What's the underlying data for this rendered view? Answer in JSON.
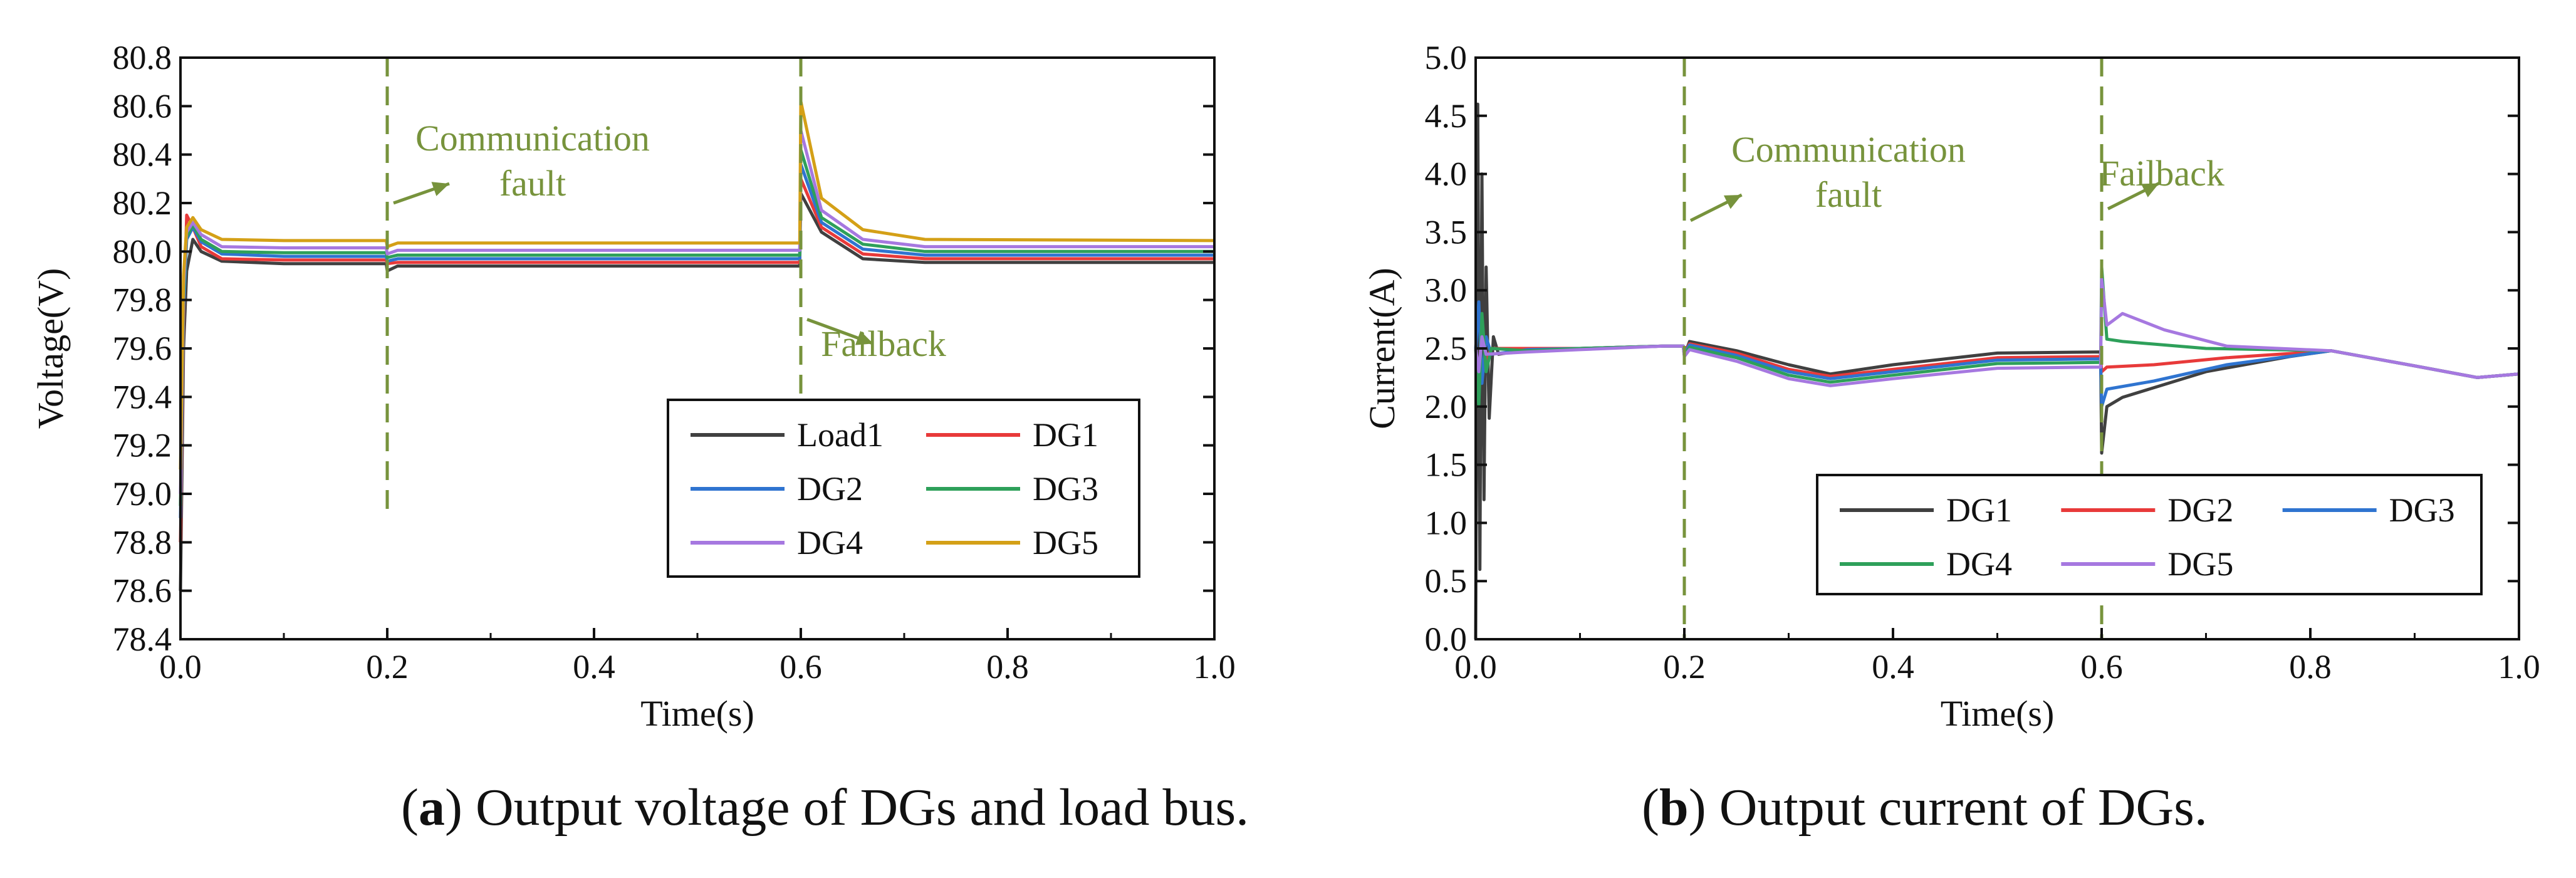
{
  "annotation_color": "#77933c",
  "chart_data": [
    {
      "id": "a",
      "type": "line",
      "caption_label": "a",
      "caption_text": "Output voltage of DGs and load bus.",
      "xlabel": "Time(s)",
      "ylabel": "Voltage(V)",
      "xlim": [
        0,
        1.0
      ],
      "ylim": [
        78.4,
        80.8
      ],
      "xticks": [
        "0.0",
        "0.2",
        "0.4",
        "0.6",
        "0.8",
        "1.0"
      ],
      "yticks": [
        "78.4",
        "78.6",
        "78.8",
        "79.0",
        "79.2",
        "79.4",
        "79.6",
        "79.8",
        "80.0",
        "80.2",
        "80.4",
        "80.6",
        "80.8"
      ],
      "legend_position": "bottom-right",
      "legend_columns": 2,
      "series": [
        {
          "name": "Load1",
          "color": "#404040",
          "points": [
            [
              0,
              78.6
            ],
            [
              0.003,
              79.6
            ],
            [
              0.006,
              79.92
            ],
            [
              0.012,
              80.05
            ],
            [
              0.02,
              80.0
            ],
            [
              0.04,
              79.96
            ],
            [
              0.1,
              79.95
            ],
            [
              0.199,
              79.95
            ],
            [
              0.2,
              79.92
            ],
            [
              0.21,
              79.94
            ],
            [
              0.4,
              79.94
            ],
            [
              0.599,
              79.94
            ],
            [
              0.6,
              80.24
            ],
            [
              0.62,
              80.08
            ],
            [
              0.66,
              79.97
            ],
            [
              0.72,
              79.955
            ],
            [
              1.0,
              79.955
            ]
          ]
        },
        {
          "name": "DG1",
          "color": "#e83a3a",
          "points": [
            [
              0,
              78.8
            ],
            [
              0.003,
              79.7
            ],
            [
              0.006,
              80.15
            ],
            [
              0.012,
              80.1
            ],
            [
              0.02,
              80.02
            ],
            [
              0.04,
              79.97
            ],
            [
              0.1,
              79.965
            ],
            [
              0.199,
              79.965
            ],
            [
              0.2,
              79.95
            ],
            [
              0.21,
              79.955
            ],
            [
              0.4,
              79.955
            ],
            [
              0.599,
              79.955
            ],
            [
              0.6,
              80.3
            ],
            [
              0.62,
              80.1
            ],
            [
              0.66,
              79.99
            ],
            [
              0.72,
              79.97
            ],
            [
              1.0,
              79.97
            ]
          ]
        },
        {
          "name": "DG2",
          "color": "#2f74d0",
          "points": [
            [
              0,
              78.9
            ],
            [
              0.003,
              79.75
            ],
            [
              0.006,
              80.05
            ],
            [
              0.012,
              80.1
            ],
            [
              0.02,
              80.04
            ],
            [
              0.04,
              79.99
            ],
            [
              0.1,
              79.98
            ],
            [
              0.199,
              79.98
            ],
            [
              0.2,
              79.96
            ],
            [
              0.21,
              79.97
            ],
            [
              0.4,
              79.97
            ],
            [
              0.599,
              79.97
            ],
            [
              0.6,
              80.36
            ],
            [
              0.62,
              80.12
            ],
            [
              0.66,
              80.01
            ],
            [
              0.72,
              79.985
            ],
            [
              1.0,
              79.985
            ]
          ]
        },
        {
          "name": "DG3",
          "color": "#2ea05a",
          "points": [
            [
              0,
              78.95
            ],
            [
              0.003,
              79.8
            ],
            [
              0.006,
              80.06
            ],
            [
              0.012,
              80.11
            ],
            [
              0.02,
              80.05
            ],
            [
              0.04,
              80.0
            ],
            [
              0.1,
              79.995
            ],
            [
              0.199,
              79.995
            ],
            [
              0.2,
              79.975
            ],
            [
              0.21,
              79.985
            ],
            [
              0.4,
              79.985
            ],
            [
              0.599,
              79.985
            ],
            [
              0.6,
              80.42
            ],
            [
              0.62,
              80.14
            ],
            [
              0.66,
              80.03
            ],
            [
              0.72,
              80.0
            ],
            [
              1.0,
              80.0
            ]
          ]
        },
        {
          "name": "DG4",
          "color": "#a678e0",
          "points": [
            [
              0,
              79.0
            ],
            [
              0.003,
              79.85
            ],
            [
              0.006,
              80.08
            ],
            [
              0.012,
              80.12
            ],
            [
              0.02,
              80.07
            ],
            [
              0.04,
              80.02
            ],
            [
              0.1,
              80.015
            ],
            [
              0.199,
              80.015
            ],
            [
              0.2,
              79.99
            ],
            [
              0.21,
              80.005
            ],
            [
              0.4,
              80.005
            ],
            [
              0.599,
              80.005
            ],
            [
              0.6,
              80.5
            ],
            [
              0.62,
              80.17
            ],
            [
              0.66,
              80.05
            ],
            [
              0.72,
              80.02
            ],
            [
              1.0,
              80.02
            ]
          ]
        },
        {
          "name": "DG5",
          "color": "#d4a017",
          "points": [
            [
              0,
              79.1
            ],
            [
              0.003,
              79.9
            ],
            [
              0.006,
              80.1
            ],
            [
              0.012,
              80.14
            ],
            [
              0.02,
              80.09
            ],
            [
              0.04,
              80.05
            ],
            [
              0.1,
              80.045
            ],
            [
              0.199,
              80.045
            ],
            [
              0.2,
              80.02
            ],
            [
              0.21,
              80.035
            ],
            [
              0.4,
              80.035
            ],
            [
              0.599,
              80.035
            ],
            [
              0.6,
              80.62
            ],
            [
              0.62,
              80.22
            ],
            [
              0.66,
              80.09
            ],
            [
              0.72,
              80.05
            ],
            [
              1.0,
              80.045
            ]
          ]
        }
      ],
      "event_lines": [
        0.2,
        0.6
      ],
      "annotations": [
        {
          "text_lines": [
            "Communication",
            "fault"
          ],
          "anchor_x": 0.2,
          "anchor_y": 80.2,
          "arrow_dx": 0.06,
          "arrow_dy": 0.08
        },
        {
          "text_lines": [
            "Failback"
          ],
          "anchor_x": 0.6,
          "anchor_y": 79.72,
          "arrow_dx": 0.07,
          "arrow_dy": -0.1
        }
      ]
    },
    {
      "id": "b",
      "type": "line",
      "caption_label": "b",
      "caption_text": "Output current of DGs.",
      "xlabel": "Time(s)",
      "ylabel": "Current(A)",
      "xlim": [
        0,
        1.0
      ],
      "ylim": [
        0.0,
        5.0
      ],
      "xticks": [
        "0.0",
        "0.2",
        "0.4",
        "0.6",
        "0.8",
        "1.0"
      ],
      "yticks": [
        "0.0",
        "0.5",
        "1.0",
        "1.5",
        "2.0",
        "2.5",
        "3.0",
        "3.5",
        "4.0",
        "4.5",
        "5.0"
      ],
      "legend_position": "bottom-right",
      "legend_columns": 3,
      "series": [
        {
          "name": "DG1",
          "color": "#404040",
          "points": [
            [
              0,
              0.0
            ],
            [
              0.002,
              4.6
            ],
            [
              0.004,
              0.6
            ],
            [
              0.006,
              4.0
            ],
            [
              0.008,
              1.2
            ],
            [
              0.01,
              3.2
            ],
            [
              0.013,
              1.9
            ],
            [
              0.017,
              2.6
            ],
            [
              0.022,
              2.45
            ],
            [
              0.05,
              2.49
            ],
            [
              0.1,
              2.5
            ],
            [
              0.18,
              2.52
            ],
            [
              0.199,
              2.52
            ],
            [
              0.2,
              2.44
            ],
            [
              0.205,
              2.56
            ],
            [
              0.25,
              2.48
            ],
            [
              0.3,
              2.36
            ],
            [
              0.34,
              2.28
            ],
            [
              0.4,
              2.36
            ],
            [
              0.5,
              2.46
            ],
            [
              0.599,
              2.47
            ],
            [
              0.6,
              1.6
            ],
            [
              0.605,
              2.0
            ],
            [
              0.62,
              2.08
            ],
            [
              0.7,
              2.3
            ],
            [
              0.78,
              2.43
            ],
            [
              0.82,
              2.48
            ],
            [
              0.9,
              2.35
            ],
            [
              0.96,
              2.25
            ],
            [
              1.0,
              2.28
            ]
          ]
        },
        {
          "name": "DG2",
          "color": "#e83a3a",
          "points": [
            [
              0,
              2.5
            ],
            [
              0.003,
              2.2
            ],
            [
              0.006,
              2.7
            ],
            [
              0.01,
              2.4
            ],
            [
              0.015,
              2.5
            ],
            [
              0.05,
              2.5
            ],
            [
              0.1,
              2.5
            ],
            [
              0.18,
              2.52
            ],
            [
              0.199,
              2.52
            ],
            [
              0.2,
              2.46
            ],
            [
              0.205,
              2.54
            ],
            [
              0.25,
              2.46
            ],
            [
              0.3,
              2.32
            ],
            [
              0.34,
              2.26
            ],
            [
              0.4,
              2.32
            ],
            [
              0.5,
              2.42
            ],
            [
              0.599,
              2.43
            ],
            [
              0.6,
              2.3
            ],
            [
              0.605,
              2.34
            ],
            [
              0.65,
              2.36
            ],
            [
              0.72,
              2.42
            ],
            [
              0.82,
              2.48
            ],
            [
              0.9,
              2.35
            ],
            [
              0.96,
              2.25
            ],
            [
              1.0,
              2.28
            ]
          ]
        },
        {
          "name": "DG3",
          "color": "#2f74d0",
          "points": [
            [
              0,
              2.5
            ],
            [
              0.003,
              2.9
            ],
            [
              0.006,
              2.2
            ],
            [
              0.01,
              2.6
            ],
            [
              0.015,
              2.45
            ],
            [
              0.05,
              2.49
            ],
            [
              0.1,
              2.5
            ],
            [
              0.18,
              2.52
            ],
            [
              0.199,
              2.52
            ],
            [
              0.2,
              2.45
            ],
            [
              0.205,
              2.53
            ],
            [
              0.25,
              2.44
            ],
            [
              0.3,
              2.3
            ],
            [
              0.34,
              2.24
            ],
            [
              0.4,
              2.3
            ],
            [
              0.5,
              2.4
            ],
            [
              0.599,
              2.41
            ],
            [
              0.6,
              2.0
            ],
            [
              0.605,
              2.15
            ],
            [
              0.65,
              2.22
            ],
            [
              0.72,
              2.36
            ],
            [
              0.82,
              2.48
            ],
            [
              0.9,
              2.35
            ],
            [
              0.96,
              2.25
            ],
            [
              1.0,
              2.28
            ]
          ]
        },
        {
          "name": "DG4",
          "color": "#2ea05a",
          "points": [
            [
              0,
              2.5
            ],
            [
              0.003,
              2.0
            ],
            [
              0.006,
              2.8
            ],
            [
              0.01,
              2.3
            ],
            [
              0.015,
              2.5
            ],
            [
              0.05,
              2.48
            ],
            [
              0.1,
              2.5
            ],
            [
              0.18,
              2.52
            ],
            [
              0.199,
              2.52
            ],
            [
              0.2,
              2.44
            ],
            [
              0.205,
              2.51
            ],
            [
              0.25,
              2.42
            ],
            [
              0.3,
              2.27
            ],
            [
              0.34,
              2.21
            ],
            [
              0.4,
              2.27
            ],
            [
              0.5,
              2.37
            ],
            [
              0.599,
              2.38
            ],
            [
              0.6,
              3.2
            ],
            [
              0.605,
              2.58
            ],
            [
              0.62,
              2.56
            ],
            [
              0.7,
              2.5
            ],
            [
              0.82,
              2.48
            ],
            [
              0.9,
              2.35
            ],
            [
              0.96,
              2.25
            ],
            [
              1.0,
              2.28
            ]
          ]
        },
        {
          "name": "DG5",
          "color": "#a678e0",
          "points": [
            [
              0,
              2.5
            ],
            [
              0.003,
              2.3
            ],
            [
              0.006,
              2.6
            ],
            [
              0.01,
              2.45
            ],
            [
              0.05,
              2.47
            ],
            [
              0.1,
              2.49
            ],
            [
              0.18,
              2.52
            ],
            [
              0.199,
              2.52
            ],
            [
              0.2,
              2.43
            ],
            [
              0.205,
              2.49
            ],
            [
              0.25,
              2.39
            ],
            [
              0.3,
              2.24
            ],
            [
              0.34,
              2.18
            ],
            [
              0.4,
              2.24
            ],
            [
              0.5,
              2.33
            ],
            [
              0.599,
              2.34
            ],
            [
              0.6,
              3.1
            ],
            [
              0.605,
              2.7
            ],
            [
              0.62,
              2.8
            ],
            [
              0.66,
              2.66
            ],
            [
              0.72,
              2.52
            ],
            [
              0.82,
              2.48
            ],
            [
              0.9,
              2.35
            ],
            [
              0.96,
              2.25
            ],
            [
              1.0,
              2.28
            ]
          ]
        }
      ],
      "event_lines": [
        0.2,
        0.6
      ],
      "annotations": [
        {
          "text_lines": [
            "Communication",
            "fault"
          ],
          "anchor_x": 0.2,
          "anchor_y": 3.6,
          "arrow_dx": 0.055,
          "arrow_dy": 0.22
        },
        {
          "text_lines": [
            "Failback"
          ],
          "anchor_x": 0.6,
          "anchor_y": 3.7,
          "arrow_dx": 0.055,
          "arrow_dy": 0.22
        }
      ]
    }
  ]
}
